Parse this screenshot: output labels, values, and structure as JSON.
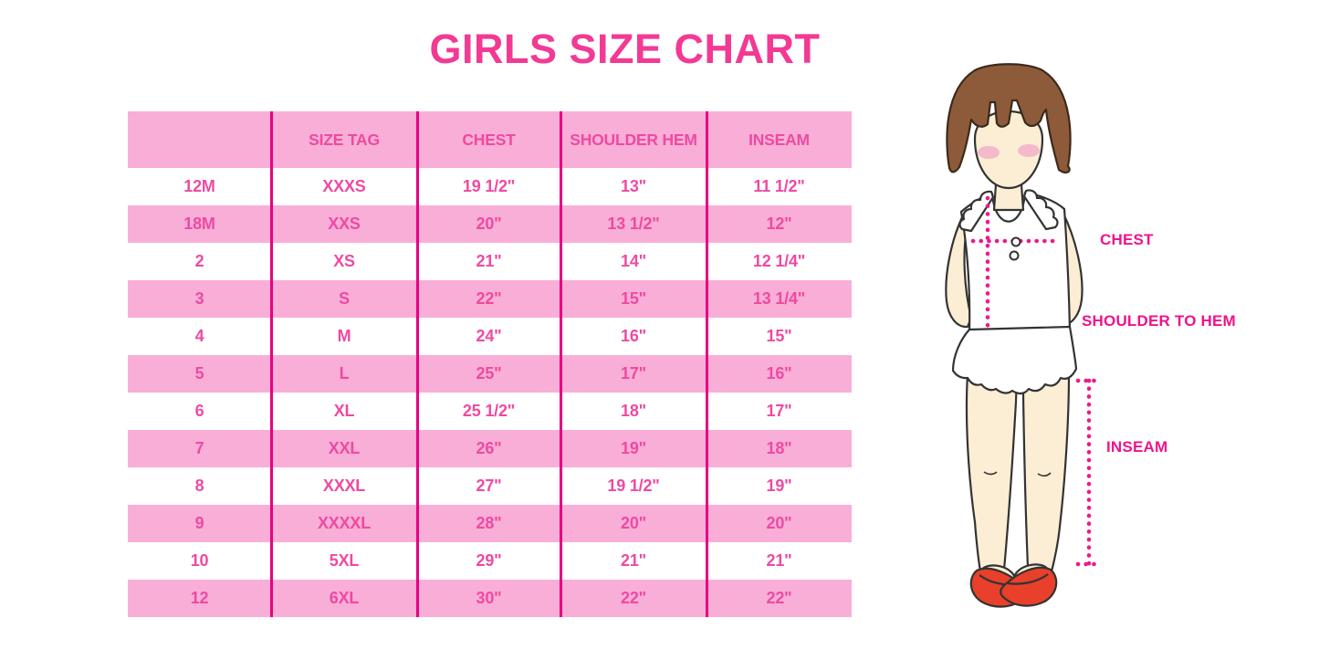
{
  "title": "GIRLS SIZE CHART",
  "colors": {
    "title": "#f23a94",
    "band": "#f9aed8",
    "text": "#ee4aa1",
    "divider": "#e60082",
    "label": "#f0128d",
    "dotted": "#ec1a8e",
    "hair": "#8d5b3a",
    "skin": "#fceed5",
    "blush": "#f4b9ca",
    "shoe": "#e8402a",
    "outline": "#333333"
  },
  "table": {
    "headers": [
      "",
      "SIZE TAG",
      "CHEST",
      "SHOULDER HEM",
      "INSEAM"
    ],
    "rows": [
      [
        "12M",
        "XXXS",
        "19 1/2\"",
        "13\"",
        "11 1/2\""
      ],
      [
        "18M",
        "XXS",
        "20\"",
        "13 1/2\"",
        "12\""
      ],
      [
        "2",
        "XS",
        "21\"",
        "14\"",
        "12 1/4\""
      ],
      [
        "3",
        "S",
        "22\"",
        "15\"",
        "13 1/4\""
      ],
      [
        "4",
        "M",
        "24\"",
        "16\"",
        "15\""
      ],
      [
        "5",
        "L",
        "25\"",
        "17\"",
        "16\""
      ],
      [
        "6",
        "XL",
        "25 1/2\"",
        "18\"",
        "17\""
      ],
      [
        "7",
        "XXL",
        "26\"",
        "19\"",
        "18\""
      ],
      [
        "8",
        "XXXL",
        "27\"",
        "19 1/2\"",
        "19\""
      ],
      [
        "9",
        "XXXXL",
        "28\"",
        "20\"",
        "20\""
      ],
      [
        "10",
        "5XL",
        "29\"",
        "21\"",
        "21\""
      ],
      [
        "12",
        "6XL",
        "30\"",
        "22\"",
        "22\""
      ]
    ]
  },
  "diagram": {
    "labels": {
      "chest": "CHEST",
      "shoulder_to_hem": "SHOULDER TO HEM",
      "inseam": "INSEAM"
    }
  }
}
